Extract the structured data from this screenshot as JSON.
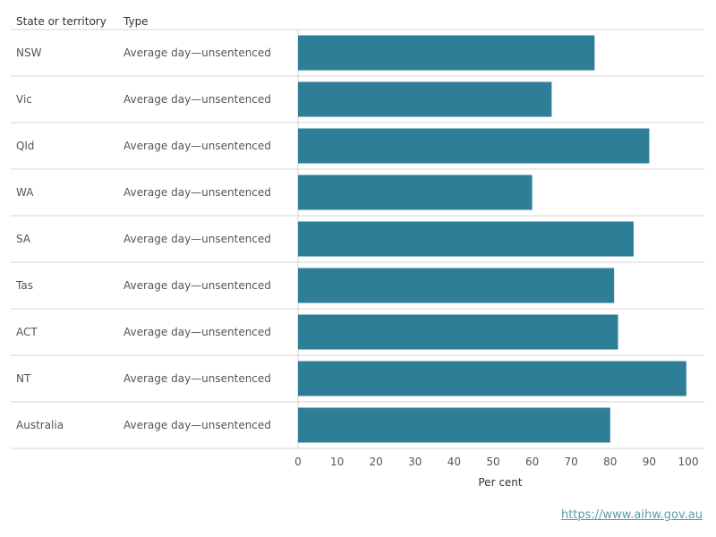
{
  "chart_data": {
    "type": "bar",
    "orientation": "horizontal",
    "column_headers": [
      "State or territory",
      "Type"
    ],
    "categories": [
      "NSW",
      "Vic",
      "Qld",
      "WA",
      "SA",
      "Tas",
      "ACT",
      "NT",
      "Australia"
    ],
    "types": [
      "Average day—unsentenced",
      "Average day—unsentenced",
      "Average day—unsentenced",
      "Average day—unsentenced",
      "Average day—unsentenced",
      "Average day—unsentenced",
      "Average day—unsentenced",
      "Average day—unsentenced",
      "Average day—unsentenced"
    ],
    "values": [
      76,
      65,
      90,
      60,
      86,
      81,
      82,
      99.5,
      80
    ],
    "xlabel": "Per cent",
    "xlim": [
      0,
      100
    ],
    "xticks": [
      0,
      10,
      20,
      30,
      40,
      50,
      60,
      70,
      80,
      90,
      100
    ],
    "bar_color": "#2e7e97",
    "grid": false
  },
  "source_link": "https://www.aihw.gov.au"
}
